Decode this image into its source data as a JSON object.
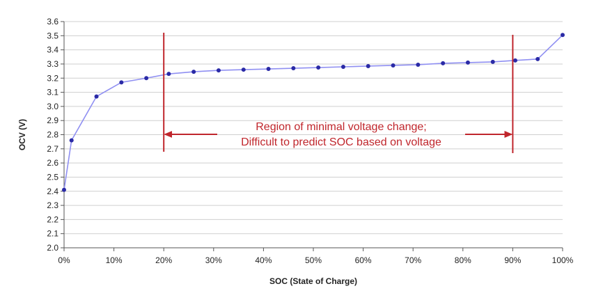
{
  "chart_data": {
    "type": "line",
    "title": "",
    "xlabel": "SOC (State of Charge)",
    "ylabel": "OCV (V)",
    "xlim": [
      0,
      100
    ],
    "ylim": [
      2.0,
      3.6
    ],
    "x_ticks": [
      "0%",
      "10%",
      "20%",
      "30%",
      "40%",
      "50%",
      "60%",
      "70%",
      "80%",
      "90%",
      "100%"
    ],
    "y_ticks": [
      "2.0",
      "2.1",
      "2.2",
      "2.3",
      "2.4",
      "2.5",
      "2.6",
      "2.7",
      "2.8",
      "2.9",
      "3.0",
      "3.1",
      "3.2",
      "3.3",
      "3.4",
      "3.5",
      "3.6"
    ],
    "grid": "horizontal",
    "line_color": "#8f8ff2",
    "marker_color": "#2a2aa6",
    "annotation_color": "#c0262c",
    "series": [
      {
        "x": [
          0,
          1.5,
          6.5,
          11.5,
          16.5,
          21,
          26,
          31,
          36,
          41,
          46,
          51,
          56,
          61,
          66,
          71,
          76,
          81,
          86,
          90.5,
          95,
          100
        ],
        "y": [
          2.41,
          2.76,
          3.07,
          3.17,
          3.2,
          3.23,
          3.245,
          3.255,
          3.26,
          3.265,
          3.27,
          3.275,
          3.28,
          3.285,
          3.29,
          3.295,
          3.305,
          3.31,
          3.315,
          3.325,
          3.335,
          3.505
        ]
      }
    ],
    "annotation": {
      "lines": [
        "Region of minimal voltage change;",
        "Difficult to predict SOC based on voltage"
      ],
      "region_start": 20,
      "region_end": 90
    }
  }
}
